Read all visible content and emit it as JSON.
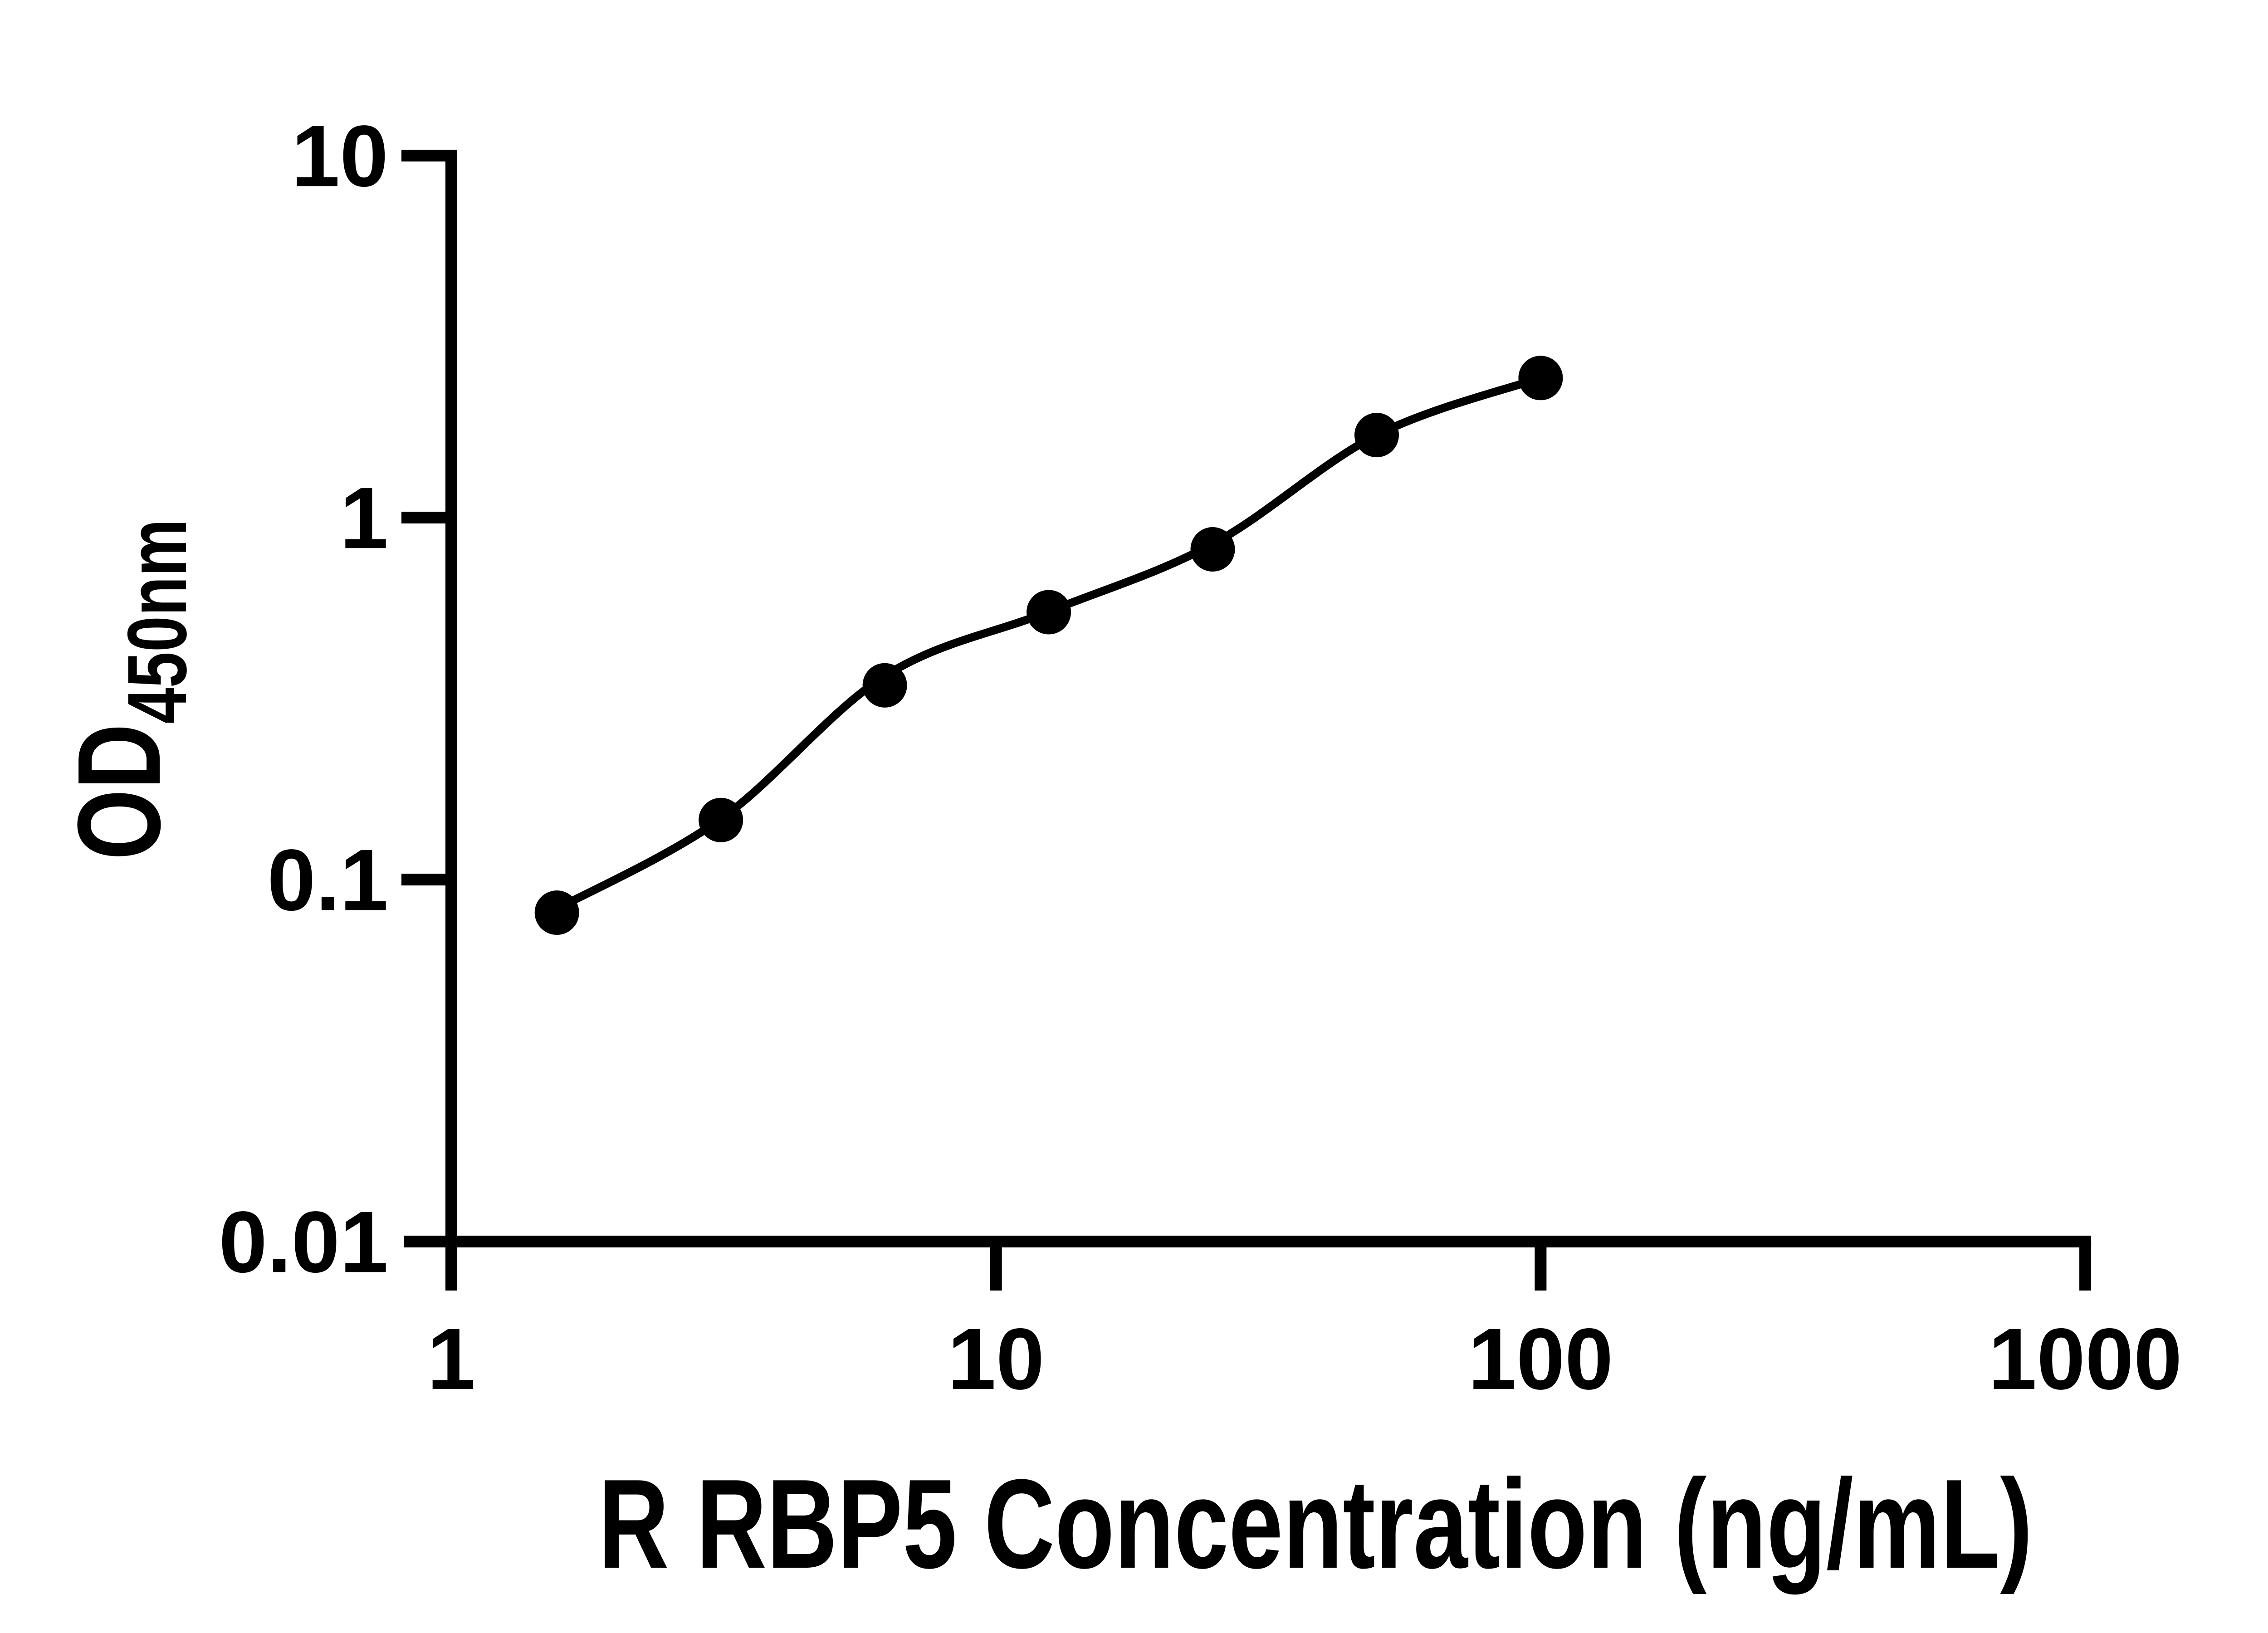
{
  "figure": {
    "background_color": "#ffffff",
    "ink_color": "#000000"
  },
  "chart_data": {
    "type": "scatter",
    "title": "",
    "xlabel": "R RBP5 Concentration (ng/mL)",
    "ylabel_main": "OD",
    "ylabel_sub": "450nm",
    "x_scale": "log",
    "y_scale": "log",
    "xlim": [
      1,
      1000
    ],
    "ylim": [
      0.01,
      10
    ],
    "grid": false,
    "legend_position": "none",
    "x_ticks": [
      1,
      10,
      100,
      1000
    ],
    "x_tick_labels": [
      "1",
      "10",
      "100",
      "1000"
    ],
    "y_ticks": [
      10,
      1,
      0.1,
      0.01
    ],
    "y_tick_labels": [
      "10",
      "1",
      "0.1",
      "0.01"
    ],
    "series": [
      {
        "name": "standard-points",
        "kind": "scatter",
        "marker": "circle",
        "color": "#000000",
        "x": [
          1.5625,
          3.125,
          6.25,
          12.5,
          25,
          50,
          100
        ],
        "y": [
          0.081,
          0.146,
          0.344,
          0.548,
          0.817,
          1.69,
          2.43
        ]
      },
      {
        "name": "fitted-curve",
        "kind": "line",
        "color": "#000000",
        "x": [
          1.5625,
          3.125,
          6.25,
          12.5,
          25,
          50,
          100
        ],
        "y": [
          0.083,
          0.147,
          0.365,
          0.55,
          0.845,
          1.69,
          2.43
        ]
      }
    ]
  }
}
